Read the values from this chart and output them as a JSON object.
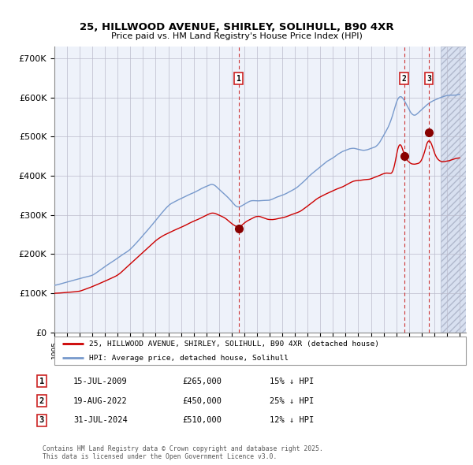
{
  "title1": "25, HILLWOOD AVENUE, SHIRLEY, SOLIHULL, B90 4XR",
  "title2": "Price paid vs. HM Land Registry's House Price Index (HPI)",
  "xlim_start": 1995.0,
  "xlim_end": 2027.5,
  "ylim": [
    0,
    730000
  ],
  "yticks": [
    0,
    100000,
    200000,
    300000,
    400000,
    500000,
    600000,
    700000
  ],
  "ytick_labels": [
    "£0",
    "£100K",
    "£200K",
    "£300K",
    "£400K",
    "£500K",
    "£600K",
    "£700K"
  ],
  "plot_bg_color": "#eef2fa",
  "hatch_color": "#d8e0f0",
  "grid_color": "#bbbbcc",
  "red_line_color": "#cc0000",
  "blue_line_color": "#7799cc",
  "marker_color": "#880000",
  "dashed_line_color": "#cc3333",
  "future_start": 2025.5,
  "sale1_x": 2009.54,
  "sale1_y": 265000,
  "sale2_x": 2022.63,
  "sale2_y": 450000,
  "sale3_x": 2024.58,
  "sale3_y": 510000,
  "label1": "25, HILLWOOD AVENUE, SHIRLEY, SOLIHULL, B90 4XR (detached house)",
  "label2": "HPI: Average price, detached house, Solihull",
  "footnote1": "Contains HM Land Registry data © Crown copyright and database right 2025.",
  "footnote2": "This data is licensed under the Open Government Licence v3.0.",
  "table_rows": [
    {
      "num": "1",
      "date": "15-JUL-2009",
      "price": "£265,000",
      "note": "15% ↓ HPI"
    },
    {
      "num": "2",
      "date": "19-AUG-2022",
      "price": "£450,000",
      "note": "25% ↓ HPI"
    },
    {
      "num": "3",
      "date": "31-JUL-2024",
      "price": "£510,000",
      "note": "12% ↓ HPI"
    }
  ]
}
